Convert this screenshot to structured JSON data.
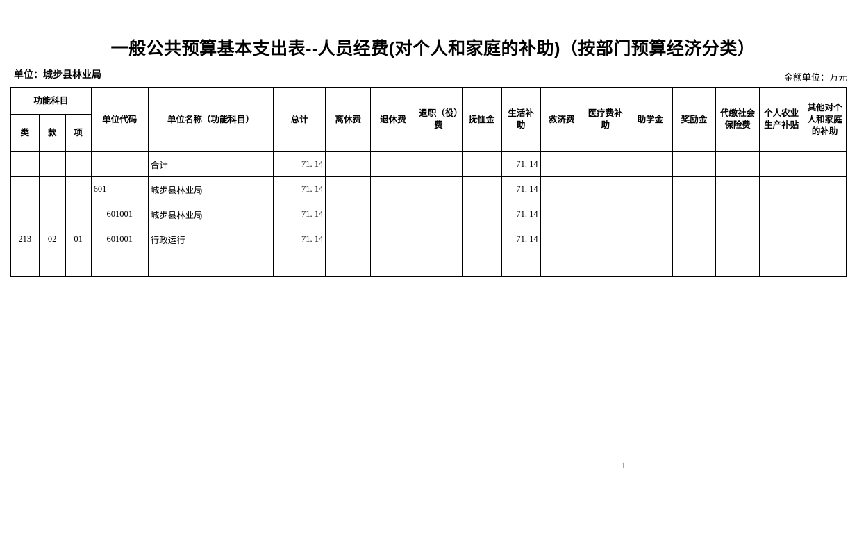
{
  "page": {
    "title": "一般公共预算基本支出表--人员经费(对个人和家庭的补助)（按部门预算经济分类）",
    "unit_label": "单位：城步县林业局",
    "amount_unit_label": "金额单位：万元",
    "page_number": "1"
  },
  "table": {
    "header": {
      "func_group": "功能科目",
      "func_cols": [
        "类",
        "款",
        "项"
      ],
      "unit_code": "单位代码",
      "unit_name": "单位名称（功能科目）",
      "columns": [
        "总计",
        "离休费",
        "退休费",
        "退职（役）费",
        "抚恤金",
        "生活补助",
        "救济费",
        "医疗费补助",
        "助学金",
        "奖励金",
        "代缴社会保险费",
        "个人农业生产补贴",
        "其他对个人和家庭的补助"
      ]
    },
    "rows": [
      {
        "lei": "",
        "kuan": "",
        "xiang": "",
        "code": "",
        "code_align": "left",
        "name": "合计",
        "indent": 0,
        "values": [
          "71. 14",
          "",
          "",
          "",
          "",
          "71. 14",
          "",
          "",
          "",
          "",
          "",
          "",
          ""
        ]
      },
      {
        "lei": "",
        "kuan": "",
        "xiang": "",
        "code": "601",
        "code_align": "left",
        "name": "城步县林业局",
        "indent": 0,
        "values": [
          "71. 14",
          "",
          "",
          "",
          "",
          "71. 14",
          "",
          "",
          "",
          "",
          "",
          "",
          ""
        ]
      },
      {
        "lei": "",
        "kuan": "",
        "xiang": "",
        "code": "601001",
        "code_align": "center",
        "name": "城步县林业局",
        "indent": 1,
        "values": [
          "71. 14",
          "",
          "",
          "",
          "",
          "71. 14",
          "",
          "",
          "",
          "",
          "",
          "",
          ""
        ]
      },
      {
        "lei": "213",
        "kuan": "02",
        "xiang": "01",
        "code": "601001",
        "code_align": "center",
        "name": "行政运行",
        "indent": 2,
        "values": [
          "71. 14",
          "",
          "",
          "",
          "",
          "71. 14",
          "",
          "",
          "",
          "",
          "",
          "",
          ""
        ]
      },
      {
        "lei": "",
        "kuan": "",
        "xiang": "",
        "code": "",
        "code_align": "left",
        "name": "",
        "indent": 0,
        "values": [
          "",
          "",
          "",
          "",
          "",
          "",
          "",
          "",
          "",
          "",
          "",
          "",
          ""
        ]
      }
    ]
  }
}
